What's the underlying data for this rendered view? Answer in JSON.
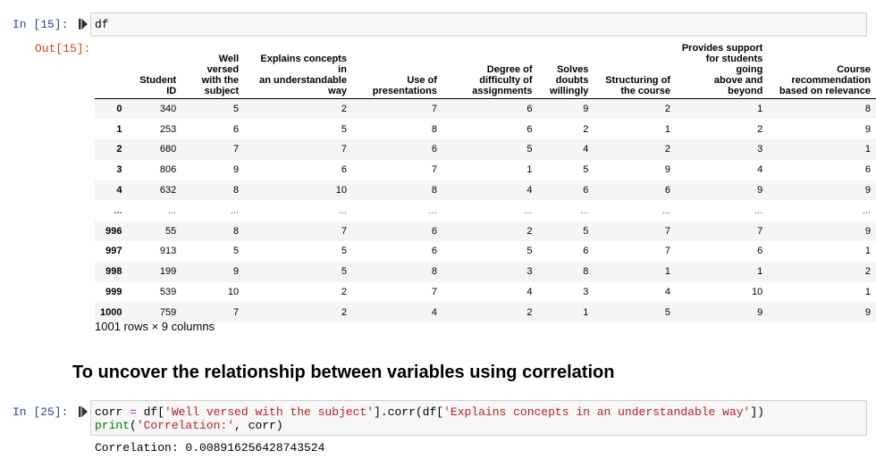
{
  "cell1": {
    "in_prompt": "In [15]:",
    "code": "df",
    "out_prompt": "Out[15]:"
  },
  "table": {
    "columns": [
      [
        "Student",
        "ID"
      ],
      [
        "Well versed",
        "with the",
        "subject"
      ],
      [
        "Explains concepts in",
        "an understandable",
        "way"
      ],
      [
        "Use of",
        "presentations"
      ],
      [
        "Degree of",
        "difficulty of",
        "assignments"
      ],
      [
        "Solves",
        "doubts",
        "willingly"
      ],
      [
        "Structuring of",
        "the course"
      ],
      [
        "Provides support",
        "for students going",
        "above and beyond"
      ],
      [
        "Course",
        "recommendation",
        "based on relevance"
      ]
    ],
    "rows": [
      {
        "index": "0",
        "values": [
          "340",
          "5",
          "2",
          "7",
          "6",
          "9",
          "2",
          "1",
          "8"
        ]
      },
      {
        "index": "1",
        "values": [
          "253",
          "6",
          "5",
          "8",
          "6",
          "2",
          "1",
          "2",
          "9"
        ]
      },
      {
        "index": "2",
        "values": [
          "680",
          "7",
          "7",
          "6",
          "5",
          "4",
          "2",
          "3",
          "1"
        ]
      },
      {
        "index": "3",
        "values": [
          "806",
          "9",
          "6",
          "7",
          "1",
          "5",
          "9",
          "4",
          "6"
        ]
      },
      {
        "index": "4",
        "values": [
          "632",
          "8",
          "10",
          "8",
          "4",
          "6",
          "6",
          "9",
          "9"
        ]
      },
      {
        "index": "...",
        "values": [
          "...",
          "...",
          "...",
          "...",
          "...",
          "...",
          "...",
          "...",
          "..."
        ]
      },
      {
        "index": "996",
        "values": [
          "55",
          "8",
          "7",
          "6",
          "2",
          "5",
          "7",
          "7",
          "9"
        ]
      },
      {
        "index": "997",
        "values": [
          "913",
          "5",
          "5",
          "6",
          "5",
          "6",
          "7",
          "6",
          "1"
        ]
      },
      {
        "index": "998",
        "values": [
          "199",
          "9",
          "5",
          "8",
          "3",
          "8",
          "1",
          "1",
          "2"
        ]
      },
      {
        "index": "999",
        "values": [
          "539",
          "10",
          "2",
          "7",
          "4",
          "3",
          "4",
          "10",
          "1"
        ]
      },
      {
        "index": "1000",
        "values": [
          "759",
          "7",
          "2",
          "4",
          "2",
          "1",
          "5",
          "9",
          "9"
        ]
      }
    ],
    "shape": "1001 rows × 9 columns"
  },
  "markdown": {
    "heading": "To uncover the relationship between variables using correlation"
  },
  "cell2": {
    "in_prompt": "In [25]:",
    "line1_var": "corr",
    "line1_eq": " = ",
    "line1_a": "df[",
    "line1_s1": "'Well versed with the subject'",
    "line1_b": "].corr(df[",
    "line1_s2": "'Explains concepts in an understandable way'",
    "line1_c": "])",
    "line2_fn": "print",
    "line2_a": "(",
    "line2_s": "'Correlation:'",
    "line2_b": ", corr)",
    "output": "Correlation: 0.008916256428743524"
  }
}
